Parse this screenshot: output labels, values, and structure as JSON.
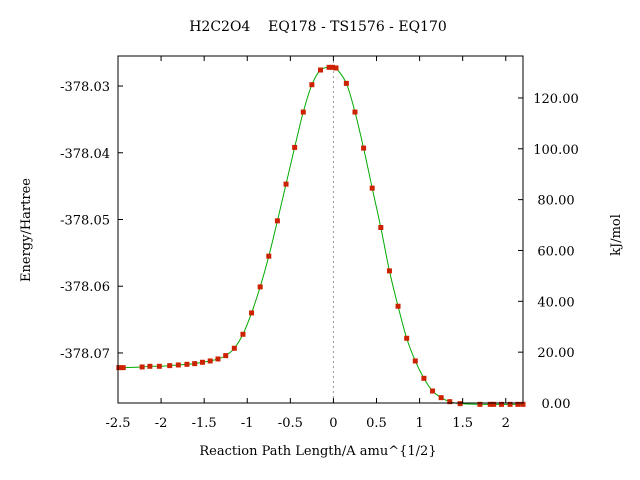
{
  "chart_data": {
    "type": "line",
    "title": "H2C2O4    EQ178 - TS1576 - EQ170",
    "xlabel": "Reaction Path Length/A amu^{1/2}",
    "ylabel": "Energy/Hartree",
    "y2label": "kJ/mol",
    "xlim": [
      -2.5,
      2.2
    ],
    "ylim": [
      -378.0775,
      -378.0255
    ],
    "y2lim": [
      0.0,
      136.5
    ],
    "x_ticks": [
      -2.5,
      -2,
      -1.5,
      -1,
      -0.5,
      0,
      0.5,
      1,
      1.5,
      2
    ],
    "x_tick_labels": [
      "-2.5",
      "-2",
      "-1.5",
      "-1",
      "-0.5",
      "0",
      "0.5",
      "1",
      "1.5",
      "2"
    ],
    "y_ticks": [
      -378.07,
      -378.06,
      -378.05,
      -378.04,
      -378.03
    ],
    "y_tick_labels": [
      "-378.07",
      "-378.06",
      "-378.05",
      "-378.04",
      "-378.03"
    ],
    "y2_ticks": [
      0,
      20,
      40,
      60,
      80,
      100,
      120
    ],
    "y2_tick_labels": [
      "0.00",
      "20.00",
      "40.00",
      "60.00",
      "80.00",
      "100.00",
      "120.00"
    ],
    "grid": false,
    "ts_line_x": 0,
    "colors": {
      "curve": "#00aa00",
      "marker": "#cc2200",
      "ts_line": "#999999",
      "axes": "#000000"
    },
    "series": [
      {
        "x": [
          -2.49,
          -2.44,
          -2.22,
          -2.13,
          -2.02,
          -1.9,
          -1.8,
          -1.7,
          -1.61,
          -1.52,
          -1.43,
          -1.34,
          -1.25,
          -1.15,
          -1.05,
          -0.95,
          -0.85,
          -0.75,
          -0.65,
          -0.55,
          -0.45,
          -0.35,
          -0.25,
          -0.15,
          -0.05,
          -0.01,
          0.03,
          0.15,
          0.25,
          0.35,
          0.45,
          0.55,
          0.65,
          0.75,
          0.85,
          0.95,
          1.05,
          1.15,
          1.25,
          1.35,
          1.47,
          1.7,
          1.82,
          1.86,
          1.95,
          2.05,
          2.14,
          2.2
        ],
        "y": [
          -378.0722,
          -378.0722,
          -378.0721,
          -378.072,
          -378.072,
          -378.0719,
          -378.0718,
          -378.0717,
          -378.0716,
          -378.0714,
          -378.0712,
          -378.0709,
          -378.0704,
          -378.0693,
          -378.0672,
          -378.064,
          -378.0601,
          -378.0555,
          -378.0502,
          -378.0447,
          -378.0392,
          -378.0339,
          -378.0298,
          -378.0276,
          -378.0272,
          -378.0272,
          -378.0273,
          -378.0296,
          -378.0339,
          -378.0393,
          -378.0453,
          -378.0512,
          -378.0577,
          -378.063,
          -378.0678,
          -378.0712,
          -378.0738,
          -378.0757,
          -378.0767,
          -378.0773,
          -378.0776,
          -378.0777,
          -378.0777,
          -378.0777,
          -378.0777,
          -378.0777,
          -378.0777,
          -378.0777
        ]
      }
    ]
  }
}
